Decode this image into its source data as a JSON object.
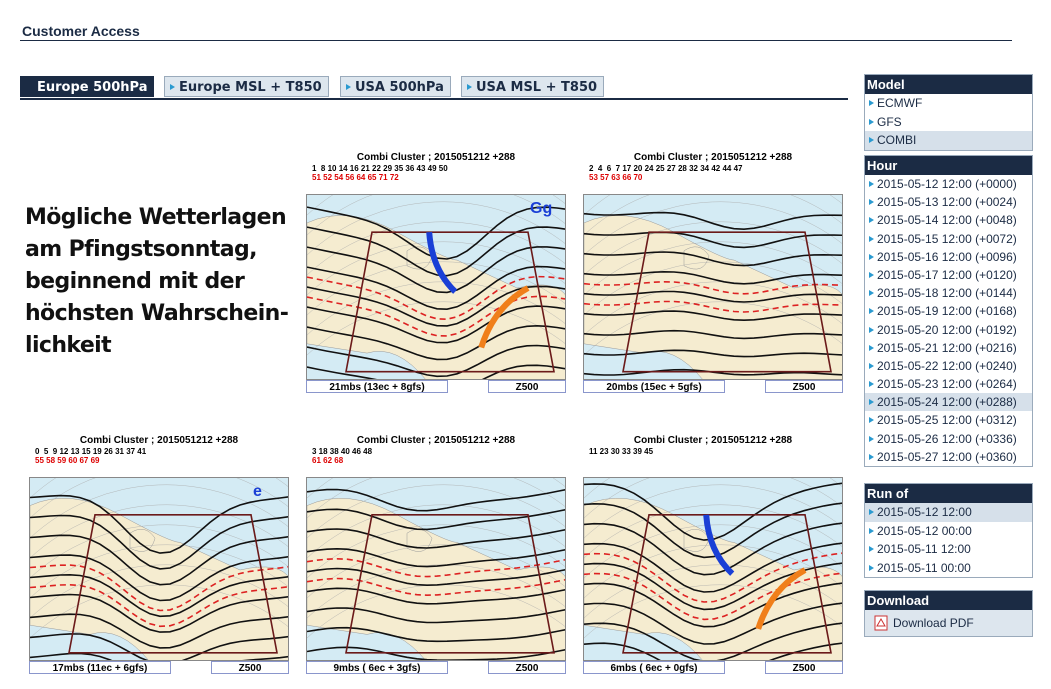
{
  "header": {
    "title": "Customer Access"
  },
  "tabs": {
    "items": [
      "Europe 500hPa",
      "Europe MSL + T850",
      "USA 500hPa",
      "USA MSL + T850"
    ],
    "selected": 0
  },
  "headline": [
    "Mögliche Wetterlagen",
    "am Pfingstsonntag,",
    "beginnend mit der",
    "höchsten Wahrschein-",
    "lichkeit"
  ],
  "maps": [
    {
      "title": "Combi Cluster ; 2015051212 +288",
      "members_ec": "1  8 10 14 16 21 22 29 35 36 43 49 50",
      "members_gfs": "51 52 54 56 64 65 71 72",
      "caption": "21mbs (13ec + 8gfs)",
      "field": "Z500",
      "annotation": "Gg"
    },
    {
      "title": "Combi Cluster ; 2015051212 +288",
      "members_ec": "2  4  6  7 17 20 24 25 27 28 32 34 42 44 47",
      "members_gfs": "53 57 63 66 70",
      "caption": "20mbs (15ec + 5gfs)",
      "field": "Z500"
    },
    {
      "title": "Combi Cluster ; 2015051212 +288",
      "members_ec": "0  5  9 12 13 15 19 26 31 37 41",
      "members_gfs": "55 58 59 60 67 69",
      "caption": "17mbs (11ec + 6gfs)",
      "field": "Z500",
      "annotation": "e"
    },
    {
      "title": "Combi Cluster ; 2015051212 +288",
      "members_ec": "3 18 38 40 46 48",
      "members_gfs": "61 62 68",
      "caption": "9mbs ( 6ec + 3gfs)",
      "field": "Z500"
    },
    {
      "title": "Combi Cluster ; 2015051212 +288",
      "members_ec": "11 23 30 33 39 45",
      "caption": "6mbs ( 6ec + 0gfs)",
      "field": "Z500"
    }
  ],
  "sidebar": [
    {
      "title": "Model",
      "items": [
        "ECMWF",
        "GFS",
        "COMBI"
      ],
      "selected": 2
    },
    {
      "title": "Hour",
      "items": [
        "2015-05-12 12:00 (+0000)",
        "2015-05-13 12:00 (+0024)",
        "2015-05-14 12:00 (+0048)",
        "2015-05-15 12:00 (+0072)",
        "2015-05-16 12:00 (+0096)",
        "2015-05-17 12:00 (+0120)",
        "2015-05-18 12:00 (+0144)",
        "2015-05-19 12:00 (+0168)",
        "2015-05-20 12:00 (+0192)",
        "2015-05-21 12:00 (+0216)",
        "2015-05-22 12:00 (+0240)",
        "2015-05-23 12:00 (+0264)",
        "2015-05-24 12:00 (+0288)",
        "2015-05-25 12:00 (+0312)",
        "2015-05-26 12:00 (+0336)",
        "2015-05-27 12:00 (+0360)"
      ],
      "selected": 12
    },
    {
      "title": "Run of",
      "items": [
        "2015-05-12 12:00",
        "2015-05-12 00:00",
        "2015-05-11 12:00",
        "2015-05-11 00:00"
      ],
      "selected": 0
    },
    {
      "title": "Download",
      "items": [
        "Download PDF"
      ]
    }
  ]
}
